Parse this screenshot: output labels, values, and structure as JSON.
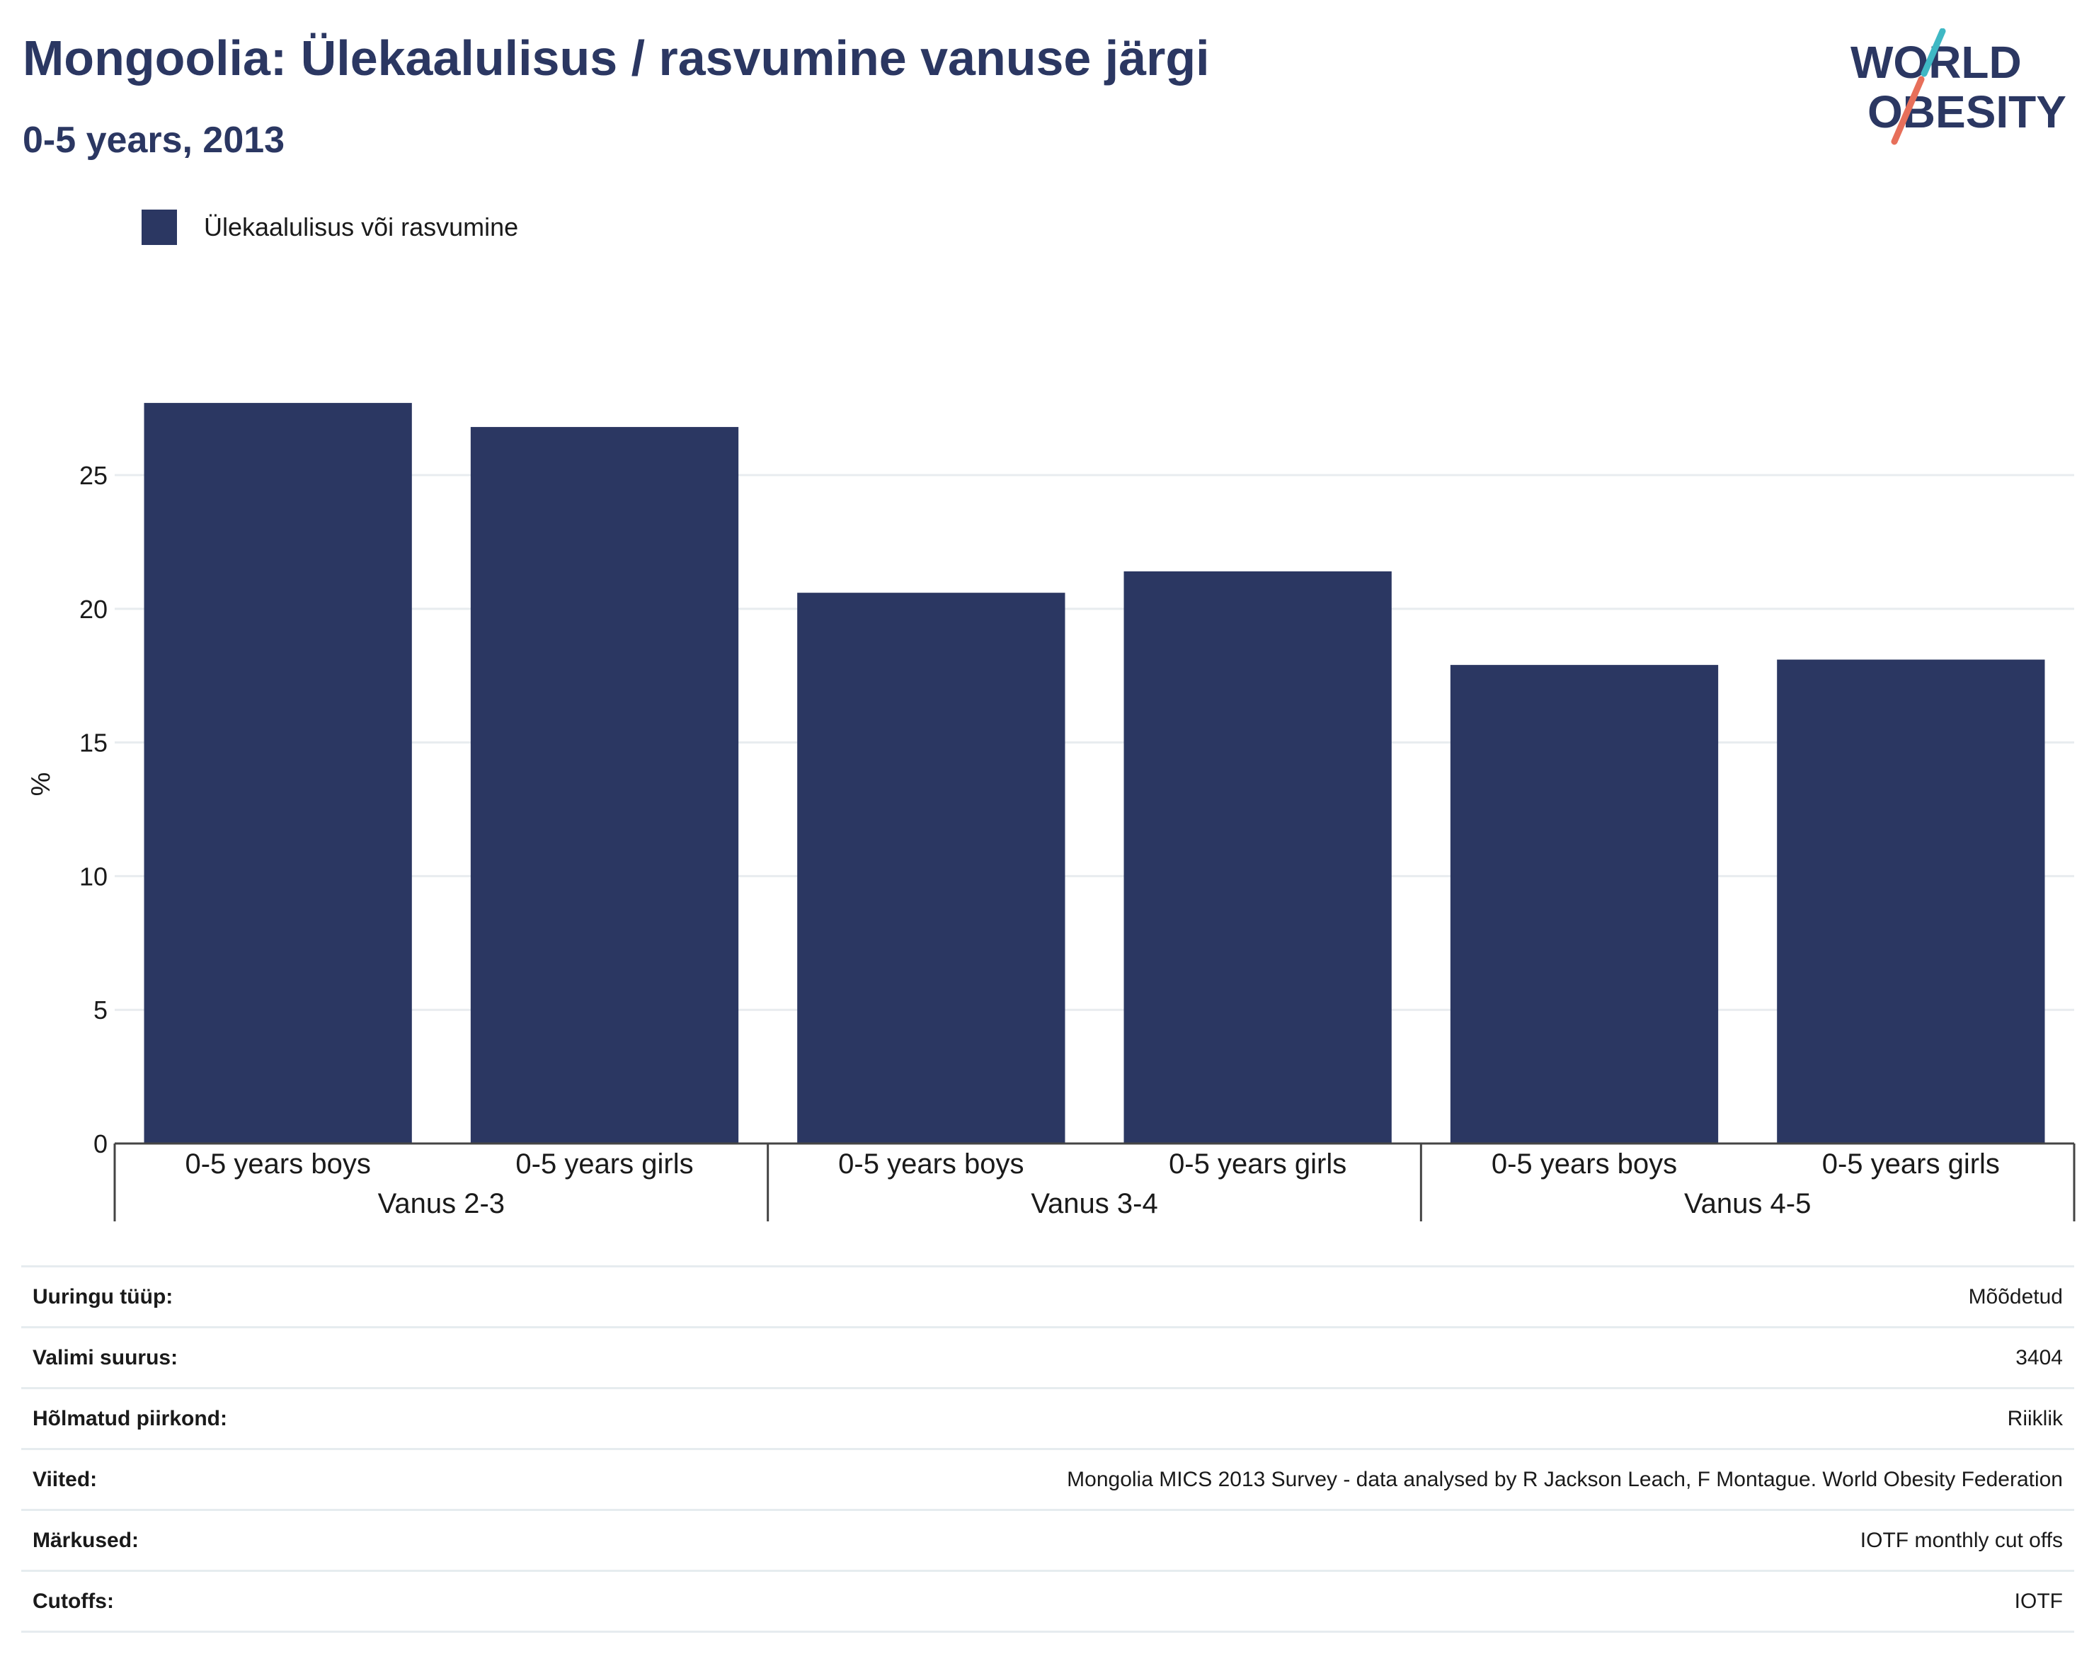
{
  "title": "Mongoolia: Ülekaalulisus / rasvumine vanuse järgi",
  "subtitle": "0-5 years, 2013",
  "logo": {
    "line1": "WORLD",
    "line2": "OBESITY",
    "colors": {
      "text": "#2b3762",
      "slash_top": "#3fb8c4",
      "slash_bottom": "#e76f5a"
    }
  },
  "legend": {
    "label": "Ülekaalulisus või rasvumine",
    "color": "#2b3762"
  },
  "chart_data": {
    "type": "bar",
    "ylabel": "%",
    "ylim": [
      0,
      29
    ],
    "yticks": [
      0,
      5,
      10,
      15,
      20,
      25
    ],
    "grid": true,
    "groups": [
      "Vanus 2-3",
      "Vanus 3-4",
      "Vanus 4-5"
    ],
    "categories": [
      "0-5 years boys",
      "0-5 years girls",
      "0-5 years boys",
      "0-5 years girls",
      "0-5 years boys",
      "0-5 years girls"
    ],
    "series": [
      {
        "name": "Ülekaalulisus või rasvumine",
        "color": "#2b3762",
        "values": [
          27.7,
          26.8,
          20.6,
          21.4,
          17.9,
          18.1
        ]
      }
    ]
  },
  "info": [
    {
      "label": "Uuringu tüüp:",
      "value": "Mõõdetud"
    },
    {
      "label": "Valimi suurus:",
      "value": "3404"
    },
    {
      "label": "Hõlmatud piirkond:",
      "value": "Riiklik"
    },
    {
      "label": "Viited:",
      "value": "Mongolia MICS 2013 Survey - data analysed by R Jackson Leach, F Montague. World Obesity Federation"
    },
    {
      "label": "Märkused:",
      "value": "IOTF monthly cut offs"
    },
    {
      "label": "Cutoffs:",
      "value": "IOTF"
    }
  ]
}
